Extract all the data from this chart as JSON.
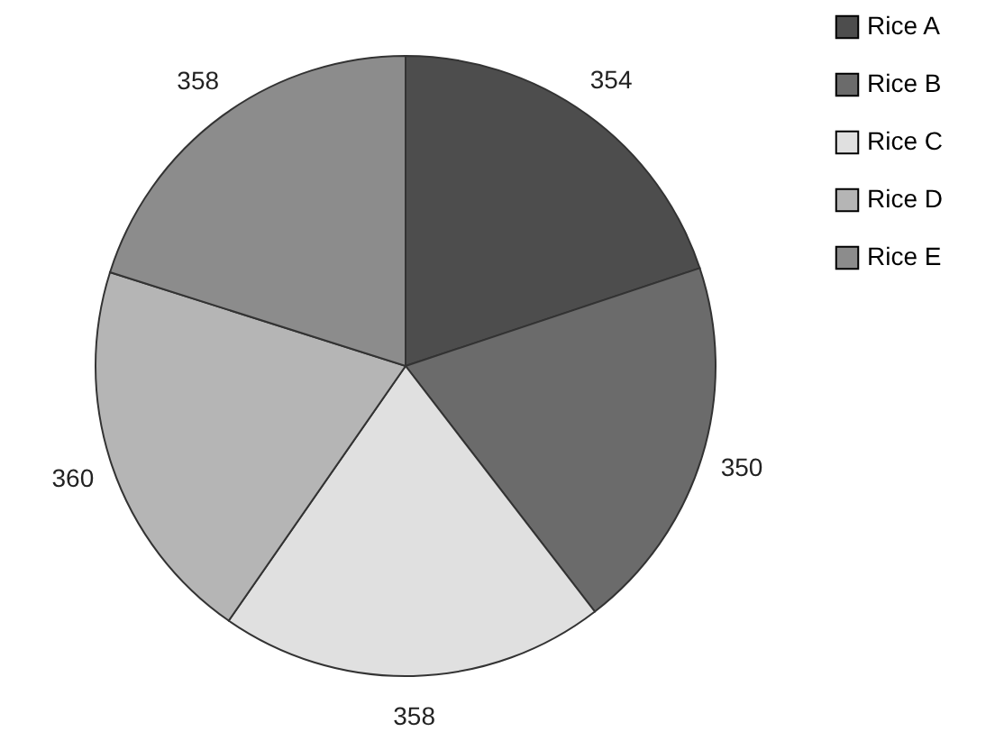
{
  "chart_data": {
    "type": "pie",
    "categories": [
      "Rice A",
      "Rice B",
      "Rice C",
      "Rice D",
      "Rice E"
    ],
    "values": [
      354,
      350,
      358,
      360,
      358
    ],
    "colors": [
      "#4d4d4d",
      "#6b6b6b",
      "#e0e0e0",
      "#b5b5b5",
      "#8c8c8c"
    ],
    "data_labels": true,
    "legend": "right"
  }
}
